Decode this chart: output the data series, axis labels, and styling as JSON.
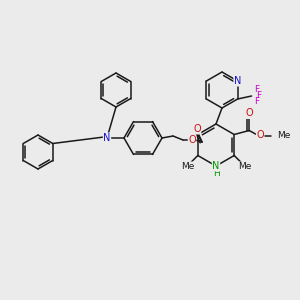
{
  "background_color": "#ebebeb",
  "bond_color": "#1a1a1a",
  "N_color": "#1111cc",
  "O_color": "#cc1111",
  "F_color": "#cc00cc",
  "NH_color": "#009900",
  "figsize": [
    3.0,
    3.0
  ],
  "dpi": 100,
  "xlim": [
    0,
    300
  ],
  "ylim": [
    0,
    300
  ]
}
